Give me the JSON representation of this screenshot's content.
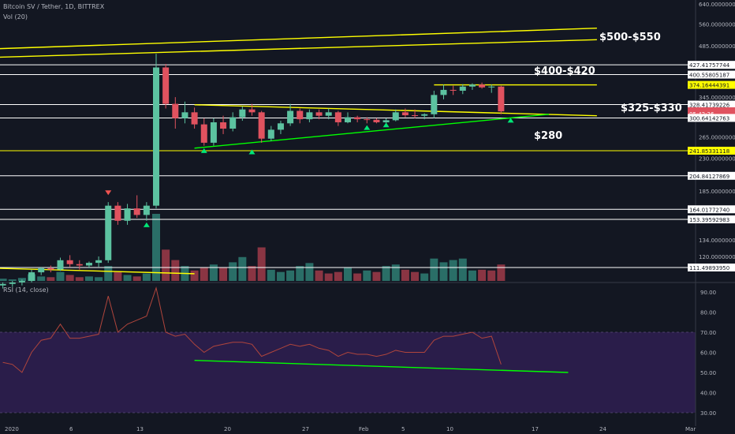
{
  "header": {
    "title": "Bitcoin SV / Tether, 1D, BITTREX",
    "volume_label": "Vol (20)"
  },
  "rsi": {
    "label": "RSI (14, close)",
    "ticks": [
      "90.00",
      "80.00",
      "70.00",
      "60.00",
      "50.00",
      "40.00",
      "30.00"
    ]
  },
  "annotations": [
    {
      "label": "$500-$550"
    },
    {
      "label": "$400-$420"
    },
    {
      "label": "$325-$330"
    },
    {
      "label": "$280"
    }
  ],
  "chart_data": {
    "type": "candlestick",
    "y_scale": "log",
    "price_ticks": [
      "640.00000000",
      "560.00000000",
      "485.00000000",
      "345.00000000",
      "265.00000000",
      "230.00000000",
      "185.00000000",
      "134.00000000",
      "120.00000000"
    ],
    "price_labels": [
      {
        "value": "427.41757744",
        "price": 427.4,
        "kind": "white"
      },
      {
        "value": "400.55805187",
        "price": 400.6,
        "kind": "white"
      },
      {
        "value": "374.16444391",
        "price": 374.2,
        "kind": "yellow"
      },
      {
        "value": "328.41739226",
        "price": 328.4,
        "kind": "white"
      },
      {
        "value": "314.18976028",
        "price": 314.2,
        "kind": "red"
      },
      {
        "value": "05:42:26",
        "price": 309.5,
        "kind": "red"
      },
      {
        "value": "300.64142763",
        "price": 300.6,
        "kind": "white"
      },
      {
        "value": "241.85331118",
        "price": 241.9,
        "kind": "yellow"
      },
      {
        "value": "204.84127869",
        "price": 204.8,
        "kind": "white"
      },
      {
        "value": "164.01772740",
        "price": 164.0,
        "kind": "white"
      },
      {
        "value": "153.39592983",
        "price": 153.4,
        "kind": "white"
      },
      {
        "value": "111.49893950",
        "price": 111.5,
        "kind": "white"
      }
    ],
    "x_ticks": [
      "2020",
      "6",
      "13",
      "20",
      "27",
      "Feb",
      "5",
      "10",
      "17",
      "24",
      "Mar"
    ],
    "candles": [
      {
        "d": "2019-12-31",
        "o": 99,
        "h": 101,
        "l": 97,
        "c": 100
      },
      {
        "d": "2020-01-01",
        "o": 100,
        "h": 102,
        "l": 98,
        "c": 101
      },
      {
        "d": "2020-01-02",
        "o": 101,
        "h": 103,
        "l": 99,
        "c": 102
      },
      {
        "d": "2020-01-03",
        "o": 102,
        "h": 110,
        "l": 101,
        "c": 108
      },
      {
        "d": "2020-01-04",
        "o": 108,
        "h": 112,
        "l": 106,
        "c": 111
      },
      {
        "d": "2020-01-05",
        "o": 111,
        "h": 113,
        "l": 108,
        "c": 110
      },
      {
        "d": "2020-01-06",
        "o": 110,
        "h": 119,
        "l": 109,
        "c": 117
      },
      {
        "d": "2020-01-07",
        "o": 117,
        "h": 121,
        "l": 112,
        "c": 114
      },
      {
        "d": "2020-01-08",
        "o": 114,
        "h": 117,
        "l": 110,
        "c": 113
      },
      {
        "d": "2020-01-09",
        "o": 113,
        "h": 116,
        "l": 111,
        "c": 115
      },
      {
        "d": "2020-01-10",
        "o": 115,
        "h": 120,
        "l": 112,
        "c": 117
      },
      {
        "d": "2020-01-11",
        "o": 117,
        "h": 172,
        "l": 115,
        "c": 168
      },
      {
        "d": "2020-01-12",
        "o": 168,
        "h": 172,
        "l": 148,
        "c": 152
      },
      {
        "d": "2020-01-13",
        "o": 152,
        "h": 170,
        "l": 148,
        "c": 165
      },
      {
        "d": "2020-01-14",
        "o": 165,
        "h": 180,
        "l": 155,
        "c": 158
      },
      {
        "d": "2020-01-15",
        "o": 158,
        "h": 172,
        "l": 152,
        "c": 168
      },
      {
        "d": "2020-01-16",
        "o": 168,
        "h": 460,
        "l": 165,
        "c": 420
      },
      {
        "d": "2020-01-17",
        "o": 420,
        "h": 430,
        "l": 320,
        "c": 330
      },
      {
        "d": "2020-01-18",
        "o": 330,
        "h": 345,
        "l": 280,
        "c": 300
      },
      {
        "d": "2020-01-19",
        "o": 300,
        "h": 335,
        "l": 290,
        "c": 312
      },
      {
        "d": "2020-01-20",
        "o": 312,
        "h": 322,
        "l": 280,
        "c": 288
      },
      {
        "d": "2020-01-21",
        "o": 288,
        "h": 300,
        "l": 250,
        "c": 255
      },
      {
        "d": "2020-01-22",
        "o": 255,
        "h": 300,
        "l": 250,
        "c": 292
      },
      {
        "d": "2020-01-23",
        "o": 292,
        "h": 305,
        "l": 270,
        "c": 280
      },
      {
        "d": "2020-01-24",
        "o": 280,
        "h": 312,
        "l": 275,
        "c": 302
      },
      {
        "d": "2020-01-25",
        "o": 302,
        "h": 325,
        "l": 295,
        "c": 318
      },
      {
        "d": "2020-01-26",
        "o": 318,
        "h": 330,
        "l": 305,
        "c": 312
      },
      {
        "d": "2020-01-27",
        "o": 312,
        "h": 315,
        "l": 255,
        "c": 262
      },
      {
        "d": "2020-01-28",
        "o": 262,
        "h": 285,
        "l": 258,
        "c": 278
      },
      {
        "d": "2020-01-29",
        "o": 278,
        "h": 295,
        "l": 270,
        "c": 290
      },
      {
        "d": "2020-01-30",
        "o": 290,
        "h": 330,
        "l": 285,
        "c": 315
      },
      {
        "d": "2020-01-31",
        "o": 315,
        "h": 320,
        "l": 290,
        "c": 298
      },
      {
        "d": "2020-02-01",
        "o": 298,
        "h": 318,
        "l": 292,
        "c": 312
      },
      {
        "d": "2020-02-02",
        "o": 312,
        "h": 318,
        "l": 298,
        "c": 305
      },
      {
        "d": "2020-02-03",
        "o": 305,
        "h": 320,
        "l": 298,
        "c": 312
      },
      {
        "d": "2020-02-04",
        "o": 312,
        "h": 315,
        "l": 285,
        "c": 292
      },
      {
        "d": "2020-02-05",
        "o": 292,
        "h": 312,
        "l": 290,
        "c": 302
      },
      {
        "d": "2020-02-06",
        "o": 302,
        "h": 305,
        "l": 292,
        "c": 298
      },
      {
        "d": "2020-02-07",
        "o": 298,
        "h": 302,
        "l": 290,
        "c": 297
      },
      {
        "d": "2020-02-08",
        "o": 297,
        "h": 300,
        "l": 290,
        "c": 292
      },
      {
        "d": "2020-02-09",
        "o": 292,
        "h": 300,
        "l": 285,
        "c": 296
      },
      {
        "d": "2020-02-10",
        "o": 296,
        "h": 318,
        "l": 294,
        "c": 312
      },
      {
        "d": "2020-02-11",
        "o": 312,
        "h": 320,
        "l": 302,
        "c": 306
      },
      {
        "d": "2020-02-12",
        "o": 306,
        "h": 318,
        "l": 300,
        "c": 305
      },
      {
        "d": "2020-02-13",
        "o": 305,
        "h": 310,
        "l": 298,
        "c": 308
      },
      {
        "d": "2020-02-14",
        "o": 308,
        "h": 360,
        "l": 300,
        "c": 350
      },
      {
        "d": "2020-02-15",
        "o": 350,
        "h": 375,
        "l": 340,
        "c": 362
      },
      {
        "d": "2020-02-16",
        "o": 362,
        "h": 372,
        "l": 350,
        "c": 360
      },
      {
        "d": "2020-02-17",
        "o": 360,
        "h": 376,
        "l": 352,
        "c": 370
      },
      {
        "d": "2020-02-18",
        "o": 370,
        "h": 378,
        "l": 362,
        "c": 375
      },
      {
        "d": "2020-02-19",
        "o": 375,
        "h": 380,
        "l": 365,
        "c": 368
      },
      {
        "d": "2020-02-20",
        "o": 368,
        "h": 375,
        "l": 355,
        "c": 370
      },
      {
        "d": "2020-02-21",
        "o": 370,
        "h": 372,
        "l": 308,
        "c": 314
      }
    ],
    "volume": [
      {
        "d": "2019-12-31",
        "v": 3,
        "up": true
      },
      {
        "d": "2020-01-01",
        "v": 2,
        "up": true
      },
      {
        "d": "2020-01-02",
        "v": 4,
        "up": true
      },
      {
        "d": "2020-01-03",
        "v": 9,
        "up": true
      },
      {
        "d": "2020-01-04",
        "v": 6,
        "up": true
      },
      {
        "d": "2020-01-05",
        "v": 5,
        "up": false
      },
      {
        "d": "2020-01-06",
        "v": 12,
        "up": true
      },
      {
        "d": "2020-01-07",
        "v": 8,
        "up": false
      },
      {
        "d": "2020-01-08",
        "v": 5,
        "up": false
      },
      {
        "d": "2020-01-09",
        "v": 6,
        "up": true
      },
      {
        "d": "2020-01-10",
        "v": 5,
        "up": true
      },
      {
        "d": "2020-01-11",
        "v": 20,
        "up": true
      },
      {
        "d": "2020-01-12",
        "v": 12,
        "up": false
      },
      {
        "d": "2020-01-13",
        "v": 8,
        "up": true
      },
      {
        "d": "2020-01-14",
        "v": 6,
        "up": false
      },
      {
        "d": "2020-01-15",
        "v": 10,
        "up": true
      },
      {
        "d": "2020-01-16",
        "v": 90,
        "up": true
      },
      {
        "d": "2020-01-17",
        "v": 42,
        "up": false
      },
      {
        "d": "2020-01-18",
        "v": 28,
        "up": false
      },
      {
        "d": "2020-01-19",
        "v": 20,
        "up": true
      },
      {
        "d": "2020-01-20",
        "v": 14,
        "up": false
      },
      {
        "d": "2020-01-21",
        "v": 18,
        "up": false
      },
      {
        "d": "2020-01-22",
        "v": 22,
        "up": true
      },
      {
        "d": "2020-01-23",
        "v": 18,
        "up": false
      },
      {
        "d": "2020-01-24",
        "v": 25,
        "up": true
      },
      {
        "d": "2020-01-25",
        "v": 32,
        "up": true
      },
      {
        "d": "2020-01-26",
        "v": 20,
        "up": false
      },
      {
        "d": "2020-01-27",
        "v": 45,
        "up": false
      },
      {
        "d": "2020-01-28",
        "v": 15,
        "up": true
      },
      {
        "d": "2020-01-29",
        "v": 12,
        "up": true
      },
      {
        "d": "2020-01-30",
        "v": 14,
        "up": true
      },
      {
        "d": "2020-01-31",
        "v": 20,
        "up": true
      },
      {
        "d": "2020-02-01",
        "v": 24,
        "up": true
      },
      {
        "d": "2020-02-02",
        "v": 14,
        "up": false
      },
      {
        "d": "2020-02-03",
        "v": 10,
        "up": false
      },
      {
        "d": "2020-02-04",
        "v": 12,
        "up": false
      },
      {
        "d": "2020-02-05",
        "v": 18,
        "up": true
      },
      {
        "d": "2020-02-06",
        "v": 10,
        "up": false
      },
      {
        "d": "2020-02-07",
        "v": 14,
        "up": true
      },
      {
        "d": "2020-02-08",
        "v": 12,
        "up": false
      },
      {
        "d": "2020-02-09",
        "v": 20,
        "up": true
      },
      {
        "d": "2020-02-10",
        "v": 22,
        "up": true
      },
      {
        "d": "2020-02-11",
        "v": 15,
        "up": false
      },
      {
        "d": "2020-02-12",
        "v": 12,
        "up": false
      },
      {
        "d": "2020-02-13",
        "v": 10,
        "up": true
      },
      {
        "d": "2020-02-14",
        "v": 30,
        "up": true
      },
      {
        "d": "2020-02-15",
        "v": 25,
        "up": true
      },
      {
        "d": "2020-02-16",
        "v": 28,
        "up": true
      },
      {
        "d": "2020-02-17",
        "v": 30,
        "up": true
      },
      {
        "d": "2020-02-18",
        "v": 14,
        "up": true
      },
      {
        "d": "2020-02-19",
        "v": 15,
        "up": false
      },
      {
        "d": "2020-02-20",
        "v": 14,
        "up": false
      },
      {
        "d": "2020-02-21",
        "v": 22,
        "up": false
      }
    ],
    "rsi_values": [
      {
        "d": "2019-12-31",
        "v": 55
      },
      {
        "d": "2020-01-01",
        "v": 54
      },
      {
        "d": "2020-01-02",
        "v": 50
      },
      {
        "d": "2020-01-03",
        "v": 60
      },
      {
        "d": "2020-01-04",
        "v": 66
      },
      {
        "d": "2020-01-05",
        "v": 67
      },
      {
        "d": "2020-01-06",
        "v": 74
      },
      {
        "d": "2020-01-07",
        "v": 67
      },
      {
        "d": "2020-01-08",
        "v": 67
      },
      {
        "d": "2020-01-09",
        "v": 68
      },
      {
        "d": "2020-01-10",
        "v": 69
      },
      {
        "d": "2020-01-11",
        "v": 88
      },
      {
        "d": "2020-01-12",
        "v": 70
      },
      {
        "d": "2020-01-13",
        "v": 74
      },
      {
        "d": "2020-01-14",
        "v": 76
      },
      {
        "d": "2020-01-15",
        "v": 78
      },
      {
        "d": "2020-01-16",
        "v": 92
      },
      {
        "d": "2020-01-17",
        "v": 70
      },
      {
        "d": "2020-01-18",
        "v": 68
      },
      {
        "d": "2020-01-19",
        "v": 69
      },
      {
        "d": "2020-01-20",
        "v": 64
      },
      {
        "d": "2020-01-21",
        "v": 60
      },
      {
        "d": "2020-01-22",
        "v": 63
      },
      {
        "d": "2020-01-23",
        "v": 64
      },
      {
        "d": "2020-01-24",
        "v": 65
      },
      {
        "d": "2020-01-25",
        "v": 65
      },
      {
        "d": "2020-01-26",
        "v": 64
      },
      {
        "d": "2020-01-27",
        "v": 58
      },
      {
        "d": "2020-01-28",
        "v": 60
      },
      {
        "d": "2020-01-29",
        "v": 62
      },
      {
        "d": "2020-01-30",
        "v": 64
      },
      {
        "d": "2020-01-31",
        "v": 63
      },
      {
        "d": "2020-02-01",
        "v": 64
      },
      {
        "d": "2020-02-02",
        "v": 62
      },
      {
        "d": "2020-02-03",
        "v": 61
      },
      {
        "d": "2020-02-04",
        "v": 58
      },
      {
        "d": "2020-02-05",
        "v": 60
      },
      {
        "d": "2020-02-06",
        "v": 59
      },
      {
        "d": "2020-02-07",
        "v": 59
      },
      {
        "d": "2020-02-08",
        "v": 58
      },
      {
        "d": "2020-02-09",
        "v": 59
      },
      {
        "d": "2020-02-10",
        "v": 61
      },
      {
        "d": "2020-02-11",
        "v": 60
      },
      {
        "d": "2020-02-12",
        "v": 60
      },
      {
        "d": "2020-02-13",
        "v": 60
      },
      {
        "d": "2020-02-14",
        "v": 66
      },
      {
        "d": "2020-02-15",
        "v": 68
      },
      {
        "d": "2020-02-16",
        "v": 68
      },
      {
        "d": "2020-02-17",
        "v": 69
      },
      {
        "d": "2020-02-18",
        "v": 70
      },
      {
        "d": "2020-02-19",
        "v": 67
      },
      {
        "d": "2020-02-20",
        "v": 68
      },
      {
        "d": "2020-02-21",
        "v": 54
      }
    ],
    "horizontal_levels": [
      {
        "price": 427.4,
        "color": "#ffffff"
      },
      {
        "price": 400.6,
        "color": "#ffffff"
      },
      {
        "price": 328.4,
        "color": "#ffffff"
      },
      {
        "price": 300.6,
        "color": "#ffffff"
      },
      {
        "price": 241.9,
        "color": "#ffff00"
      },
      {
        "price": 204.8,
        "color": "#ffffff"
      },
      {
        "price": 164.0,
        "color": "#ffffff"
      },
      {
        "price": 153.4,
        "color": "#ffffff"
      },
      {
        "price": 111.5,
        "color": "#ffffff"
      }
    ],
    "trendlines": [
      {
        "from": {
          "d": "2019-12-25",
          "price": 470
        },
        "to": {
          "d": "2020-03-02",
          "price": 545
        },
        "color": "#ffff00"
      },
      {
        "from": {
          "d": "2019-12-25",
          "price": 445
        },
        "to": {
          "d": "2020-03-02",
          "price": 505
        },
        "color": "#ffff00"
      },
      {
        "from": {
          "d": "2020-02-14",
          "price": 374.2
        },
        "to": {
          "d": "2020-03-02",
          "price": 374.2
        },
        "color": "#ffff00"
      },
      {
        "from": {
          "d": "2020-01-20",
          "price": 328
        },
        "to": {
          "d": "2020-03-02",
          "price": 305
        },
        "color": "#ffff00"
      },
      {
        "from": {
          "d": "2020-01-20",
          "price": 246
        },
        "to": {
          "d": "2020-02-26",
          "price": 308
        },
        "color": "#00ff00"
      },
      {
        "from": {
          "d": "2019-12-25",
          "price": 112
        },
        "to": {
          "d": "2020-01-20",
          "price": 107
        },
        "color": "#ffff00"
      }
    ],
    "rsi_trendline": {
      "from": {
        "d": "2020-01-20",
        "v": 56
      },
      "to": {
        "d": "2020-02-28",
        "v": 50
      },
      "color": "#00ff00"
    },
    "markers": [
      {
        "d": "2020-01-21",
        "price": 242,
        "dir": "up"
      },
      {
        "d": "2020-01-26",
        "price": 240,
        "dir": "up"
      },
      {
        "d": "2020-02-07",
        "price": 282,
        "dir": "up"
      },
      {
        "d": "2020-02-09",
        "price": 287,
        "dir": "up"
      },
      {
        "d": "2020-02-22",
        "price": 296,
        "dir": "up"
      },
      {
        "d": "2020-01-11",
        "price": 183,
        "dir": "down"
      },
      {
        "d": "2020-01-15",
        "price": 148,
        "dir": "up"
      }
    ],
    "colors": {
      "up": "#5cc2a0",
      "down": "#e0525f",
      "bg": "#131722",
      "rsi_line": "#b0453c",
      "rsi_band": "#2a1d4a",
      "vol_up": "#2a6e67",
      "vol_down": "#8a3543"
    }
  }
}
